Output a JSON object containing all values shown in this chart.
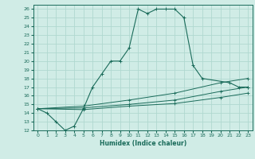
{
  "bg_color": "#d0ece6",
  "grid_color": "#b0d8d0",
  "line_color": "#1a6b5a",
  "xlabel": "Humidex (Indice chaleur)",
  "xlim": [
    -0.5,
    23.5
  ],
  "ylim": [
    12,
    26.5
  ],
  "xticks": [
    0,
    1,
    2,
    3,
    4,
    5,
    6,
    7,
    8,
    9,
    10,
    11,
    12,
    13,
    14,
    15,
    16,
    17,
    18,
    19,
    20,
    21,
    22,
    23
  ],
  "yticks": [
    12,
    13,
    14,
    15,
    16,
    17,
    18,
    19,
    20,
    21,
    22,
    23,
    24,
    25,
    26
  ],
  "series0": {
    "x": [
      0,
      1,
      2,
      3,
      4,
      5,
      6,
      7,
      8,
      9,
      10,
      11,
      12,
      13,
      14,
      15,
      16,
      17,
      18,
      21,
      22,
      23
    ],
    "y": [
      14.5,
      14.0,
      13.0,
      12.0,
      12.5,
      14.5,
      17.0,
      18.5,
      20.0,
      20.0,
      21.5,
      26.0,
      25.5,
      26.0,
      26.0,
      26.0,
      25.0,
      19.5,
      18.0,
      17.5,
      17.0,
      17.0
    ]
  },
  "series1": {
    "x": [
      0,
      5,
      10,
      15,
      20,
      23
    ],
    "y": [
      14.5,
      14.8,
      15.5,
      16.3,
      17.5,
      18.0
    ]
  },
  "series2": {
    "x": [
      0,
      5,
      10,
      15,
      20,
      23
    ],
    "y": [
      14.5,
      14.6,
      15.0,
      15.5,
      16.5,
      17.0
    ]
  },
  "series3": {
    "x": [
      0,
      5,
      10,
      15,
      20,
      23
    ],
    "y": [
      14.5,
      14.4,
      14.8,
      15.1,
      15.8,
      16.3
    ]
  }
}
